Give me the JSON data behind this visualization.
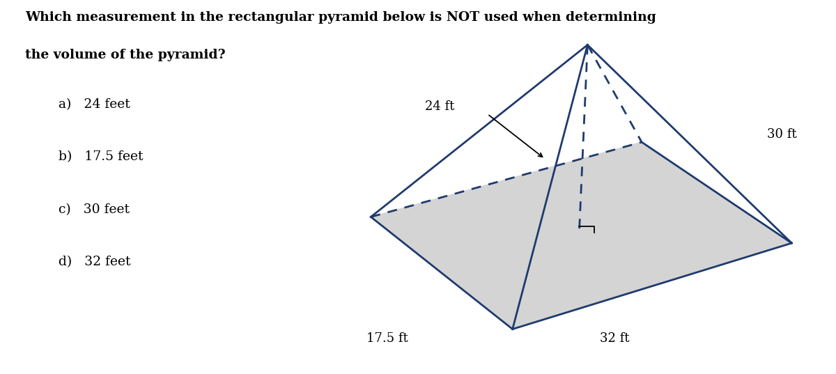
{
  "title_line1": "Which measurement in the rectangular pyramid below is NOT used when determining",
  "title_line2": "the volume of the pyramid?",
  "choices": [
    "a)   24 feet",
    "b)   17.5 feet",
    "c)   30 feet",
    "d)   32 feet"
  ],
  "background_color": "#ffffff",
  "pyramid_color": "#1e3a6e",
  "base_fill": "#d4d4d4",
  "label_24": "24 ft",
  "label_30": "30 ft",
  "label_175": "17.5 ft",
  "label_32": "32 ft",
  "title_fontsize": 13.5,
  "choice_fontsize": 13.5,
  "label_fontsize": 13
}
